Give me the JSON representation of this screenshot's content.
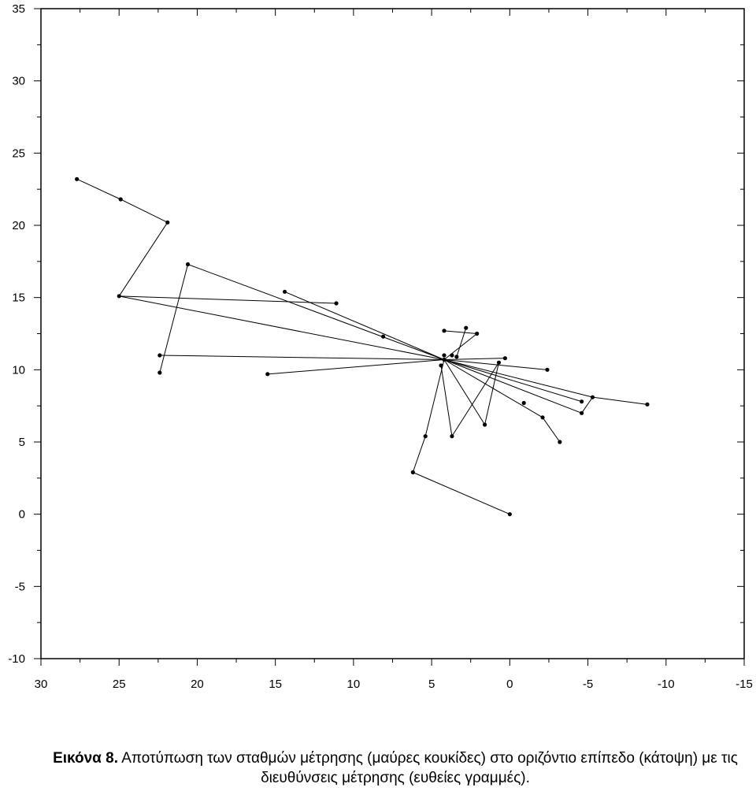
{
  "chart_data": {
    "type": "line",
    "x_axis": {
      "reversed": true,
      "range": [
        30,
        -15
      ],
      "ticks": [
        30,
        25,
        20,
        15,
        10,
        5,
        0,
        -5,
        -10,
        -15
      ],
      "tick_labels": [
        "30",
        "25",
        "20",
        "15",
        "10",
        "5",
        "0",
        "-5",
        "-10",
        "-15"
      ]
    },
    "y_axis": {
      "range": [
        -10,
        35
      ],
      "ticks": [
        -10,
        -5,
        0,
        5,
        10,
        15,
        20,
        25,
        30,
        35
      ],
      "tick_labels": [
        "-10",
        "-5",
        "0",
        "5",
        "10",
        "15",
        "20",
        "25",
        "30",
        "35"
      ]
    },
    "grid": false,
    "legend": "none",
    "stations": [
      [
        0,
        0
      ],
      [
        6.2,
        2.9
      ],
      [
        5.4,
        5.4
      ],
      [
        4.2,
        10.7
      ],
      [
        27.7,
        23.2
      ],
      [
        24.9,
        21.8
      ],
      [
        21.9,
        20.2
      ],
      [
        25.0,
        15.1
      ],
      [
        11.1,
        14.6
      ],
      [
        3.7,
        11.0
      ],
      [
        -0.9,
        7.7
      ],
      [
        -4.6,
        7.0
      ],
      [
        -5.3,
        8.1
      ],
      [
        -8.8,
        7.6
      ],
      [
        1.6,
        6.2
      ],
      [
        0.7,
        10.5
      ],
      [
        3.7,
        5.4
      ],
      [
        4.2,
        12.7
      ],
      [
        2.1,
        12.5
      ],
      [
        20.6,
        17.3
      ],
      [
        22.4,
        9.8
      ],
      [
        22.4,
        11.0
      ],
      [
        15.5,
        9.7
      ],
      [
        -2.4,
        10.0
      ],
      [
        0.3,
        10.8
      ],
      [
        14.4,
        15.4
      ],
      [
        8.1,
        12.3
      ],
      [
        3.4,
        10.9
      ],
      [
        -4.6,
        7.8
      ],
      [
        2.8,
        12.9
      ],
      [
        -2.1,
        6.7
      ],
      [
        -3.2,
        5.0
      ],
      [
        4.4,
        10.3
      ],
      [
        4.2,
        11.0
      ]
    ],
    "segments": [
      [
        [
          0,
          0
        ],
        [
          6.2,
          2.9
        ]
      ],
      [
        [
          6.2,
          2.9
        ],
        [
          5.4,
          5.4
        ]
      ],
      [
        [
          5.4,
          5.4
        ],
        [
          4.2,
          10.7
        ]
      ],
      [
        [
          27.7,
          23.2
        ],
        [
          24.9,
          21.8
        ]
      ],
      [
        [
          24.9,
          21.8
        ],
        [
          21.9,
          20.2
        ]
      ],
      [
        [
          21.9,
          20.2
        ],
        [
          25.0,
          15.1
        ]
      ],
      [
        [
          25.0,
          15.1
        ],
        [
          11.1,
          14.6
        ]
      ],
      [
        [
          25.0,
          15.1
        ],
        [
          4.2,
          10.7
        ]
      ],
      [
        [
          4.2,
          10.7
        ],
        [
          -4.6,
          7.0
        ]
      ],
      [
        [
          -4.6,
          7.0
        ],
        [
          -5.3,
          8.1
        ]
      ],
      [
        [
          -5.3,
          8.1
        ],
        [
          -8.8,
          7.6
        ]
      ],
      [
        [
          -5.3,
          8.1
        ],
        [
          4.2,
          10.7
        ]
      ],
      [
        [
          4.2,
          10.7
        ],
        [
          1.6,
          6.2
        ]
      ],
      [
        [
          1.6,
          6.2
        ],
        [
          0.7,
          10.5
        ]
      ],
      [
        [
          0.7,
          10.5
        ],
        [
          3.7,
          5.4
        ]
      ],
      [
        [
          3.7,
          5.4
        ],
        [
          4.4,
          10.3
        ]
      ],
      [
        [
          4.2,
          12.7
        ],
        [
          2.1,
          12.5
        ]
      ],
      [
        [
          2.1,
          12.5
        ],
        [
          4.2,
          10.7
        ]
      ],
      [
        [
          20.6,
          17.3
        ],
        [
          22.4,
          9.8
        ]
      ],
      [
        [
          20.6,
          17.3
        ],
        [
          4.2,
          10.7
        ]
      ],
      [
        [
          22.4,
          11.0
        ],
        [
          4.2,
          10.7
        ]
      ],
      [
        [
          15.5,
          9.7
        ],
        [
          4.2,
          10.7
        ]
      ],
      [
        [
          4.2,
          10.7
        ],
        [
          -2.4,
          10.0
        ]
      ],
      [
        [
          4.2,
          10.7
        ],
        [
          0.3,
          10.8
        ]
      ],
      [
        [
          14.4,
          15.4
        ],
        [
          4.2,
          10.7
        ]
      ],
      [
        [
          4.2,
          10.7
        ],
        [
          -4.6,
          7.8
        ]
      ],
      [
        [
          2.8,
          12.9
        ],
        [
          3.4,
          10.9
        ]
      ],
      [
        [
          4.2,
          10.7
        ],
        [
          -2.1,
          6.7
        ]
      ],
      [
        [
          -2.1,
          6.7
        ],
        [
          -3.2,
          5.0
        ]
      ]
    ]
  },
  "caption": {
    "label": "Εικόνα 8.",
    "text": " Αποτύπωση των σταθμών μέτρησης (μαύρες κουκίδες) στο οριζόντιο επίπεδο (κάτοψη) με τις διευθύνσεις μέτρησης (ευθείες γραμμές)."
  }
}
